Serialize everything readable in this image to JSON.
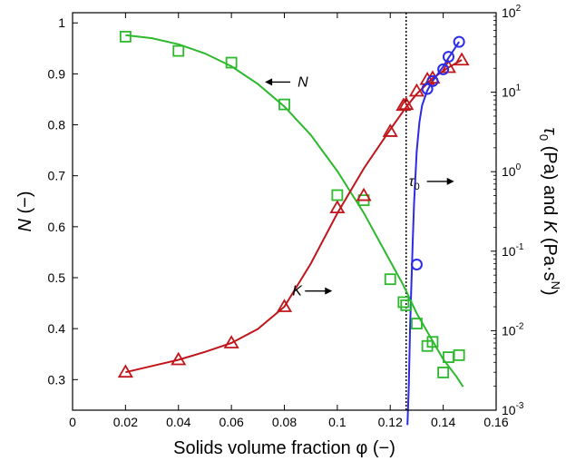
{
  "chart_data": {
    "type": "scatter",
    "xlabel": "Solids volume fraction φ (−)",
    "ylabel_left": {
      "var": "N",
      "unit": " (−)"
    },
    "ylabel_right": {
      "tau": "τ",
      "tau_sub": "0",
      "mid": " (Pa) and ",
      "var": "K",
      "unit_pre": " (Pa·s",
      "unit_sup": "N",
      "unit_post": ")"
    },
    "x_axis": {
      "range": [
        0,
        0.16
      ],
      "ticks": [
        0,
        0.02,
        0.04,
        0.06,
        0.08,
        0.1,
        0.12,
        0.14,
        0.16
      ],
      "tick_labels": [
        "0",
        "0.02",
        "0.04",
        "0.06",
        "0.08",
        "0.1",
        "0.12",
        "0.14",
        "0.16"
      ]
    },
    "y_left": {
      "range": [
        0.24,
        1.02
      ],
      "ticks": [
        0.3,
        0.4,
        0.5,
        0.6,
        0.7,
        0.8,
        0.9,
        1
      ],
      "tick_labels": [
        "0.3",
        "0.4",
        "0.5",
        "0.6",
        "0.7",
        "0.8",
        "0.9",
        "1"
      ]
    },
    "y_right": {
      "scale": "log",
      "range": [
        0.001,
        100
      ],
      "ticks": [
        0.001,
        0.01,
        0.1,
        1,
        10,
        100
      ],
      "tick_base": "10",
      "tick_exponents": [
        "-3",
        "-2",
        "-1",
        "0",
        "1",
        "2"
      ]
    },
    "vline": {
      "x": 0.126,
      "style": "dotted",
      "color": "#000000"
    },
    "series": [
      {
        "var": "N",
        "axis": "left",
        "color": "#2db82d",
        "marker": "square",
        "points": [
          [
            0.02,
            0.973
          ],
          [
            0.04,
            0.945
          ],
          [
            0.06,
            0.922
          ],
          [
            0.08,
            0.84
          ],
          [
            0.1,
            0.662
          ],
          [
            0.11,
            0.652
          ],
          [
            0.12,
            0.497
          ],
          [
            0.125,
            0.452
          ],
          [
            0.126,
            0.446
          ],
          [
            0.13,
            0.41
          ],
          [
            0.134,
            0.366
          ],
          [
            0.136,
            0.374
          ],
          [
            0.14,
            0.314
          ],
          [
            0.142,
            0.344
          ],
          [
            0.146,
            0.348
          ]
        ],
        "fit": [
          [
            0.02,
            0.976
          ],
          [
            0.03,
            0.97
          ],
          [
            0.04,
            0.958
          ],
          [
            0.05,
            0.94
          ],
          [
            0.06,
            0.915
          ],
          [
            0.07,
            0.88
          ],
          [
            0.08,
            0.836
          ],
          [
            0.09,
            0.78
          ],
          [
            0.1,
            0.709
          ],
          [
            0.11,
            0.627
          ],
          [
            0.12,
            0.532
          ],
          [
            0.125,
            0.485
          ],
          [
            0.13,
            0.43
          ],
          [
            0.135,
            0.385
          ],
          [
            0.14,
            0.34
          ],
          [
            0.145,
            0.306
          ],
          [
            0.1475,
            0.286
          ]
        ]
      },
      {
        "var": "K",
        "axis": "right",
        "color": "#c0161b",
        "marker": "triangle",
        "points": [
          [
            0.02,
            0.003
          ],
          [
            0.04,
            0.0043
          ],
          [
            0.06,
            0.007
          ],
          [
            0.08,
            0.02
          ],
          [
            0.1,
            0.35
          ],
          [
            0.11,
            0.5
          ],
          [
            0.12,
            3.2
          ],
          [
            0.125,
            6.8
          ],
          [
            0.126,
            7.0
          ],
          [
            0.13,
            10.3
          ],
          [
            0.134,
            14.4
          ],
          [
            0.136,
            15.0
          ],
          [
            0.142,
            20.4
          ],
          [
            0.147,
            25.3
          ]
        ],
        "fit": [
          [
            0.02,
            0.003
          ],
          [
            0.03,
            0.0036
          ],
          [
            0.04,
            0.0043
          ],
          [
            0.05,
            0.0054
          ],
          [
            0.06,
            0.007
          ],
          [
            0.07,
            0.0105
          ],
          [
            0.08,
            0.02
          ],
          [
            0.09,
            0.07
          ],
          [
            0.1,
            0.3
          ],
          [
            0.11,
            1.1
          ],
          [
            0.12,
            3.4
          ],
          [
            0.126,
            6.5
          ],
          [
            0.13,
            9.5
          ],
          [
            0.136,
            15.0
          ],
          [
            0.142,
            20.5
          ],
          [
            0.147,
            25.5
          ]
        ]
      },
      {
        "var": "τ0",
        "axis": "right",
        "color": "#2b2be8",
        "marker": "circle",
        "points": [
          [
            0.13,
            0.068
          ],
          [
            0.134,
            11.0
          ],
          [
            0.136,
            13.8
          ],
          [
            0.14,
            19.4
          ],
          [
            0.142,
            27.9
          ],
          [
            0.146,
            43.0
          ]
        ],
        "fit": [
          [
            0.1265,
            0.00065
          ],
          [
            0.127,
            0.002
          ],
          [
            0.1275,
            0.011
          ],
          [
            0.128,
            0.04
          ],
          [
            0.1285,
            0.14
          ],
          [
            0.129,
            0.4
          ],
          [
            0.13,
            1.8
          ],
          [
            0.131,
            4.2
          ],
          [
            0.132,
            6.8
          ],
          [
            0.134,
            10.5
          ],
          [
            0.136,
            13.8
          ],
          [
            0.138,
            17.0
          ],
          [
            0.14,
            21.0
          ],
          [
            0.142,
            27.0
          ],
          [
            0.144,
            34.0
          ],
          [
            0.146,
            43.0
          ]
        ]
      }
    ],
    "annotations": [
      {
        "label": "N",
        "arrow": "left",
        "x": 0.085,
        "y_left": 0.875
      },
      {
        "label": "K",
        "arrow": "right",
        "x": 0.083,
        "y_left": 0.465
      },
      {
        "label": "τ",
        "sub": "0",
        "arrow": "right",
        "x": 0.127,
        "y_left": 0.68
      }
    ]
  }
}
